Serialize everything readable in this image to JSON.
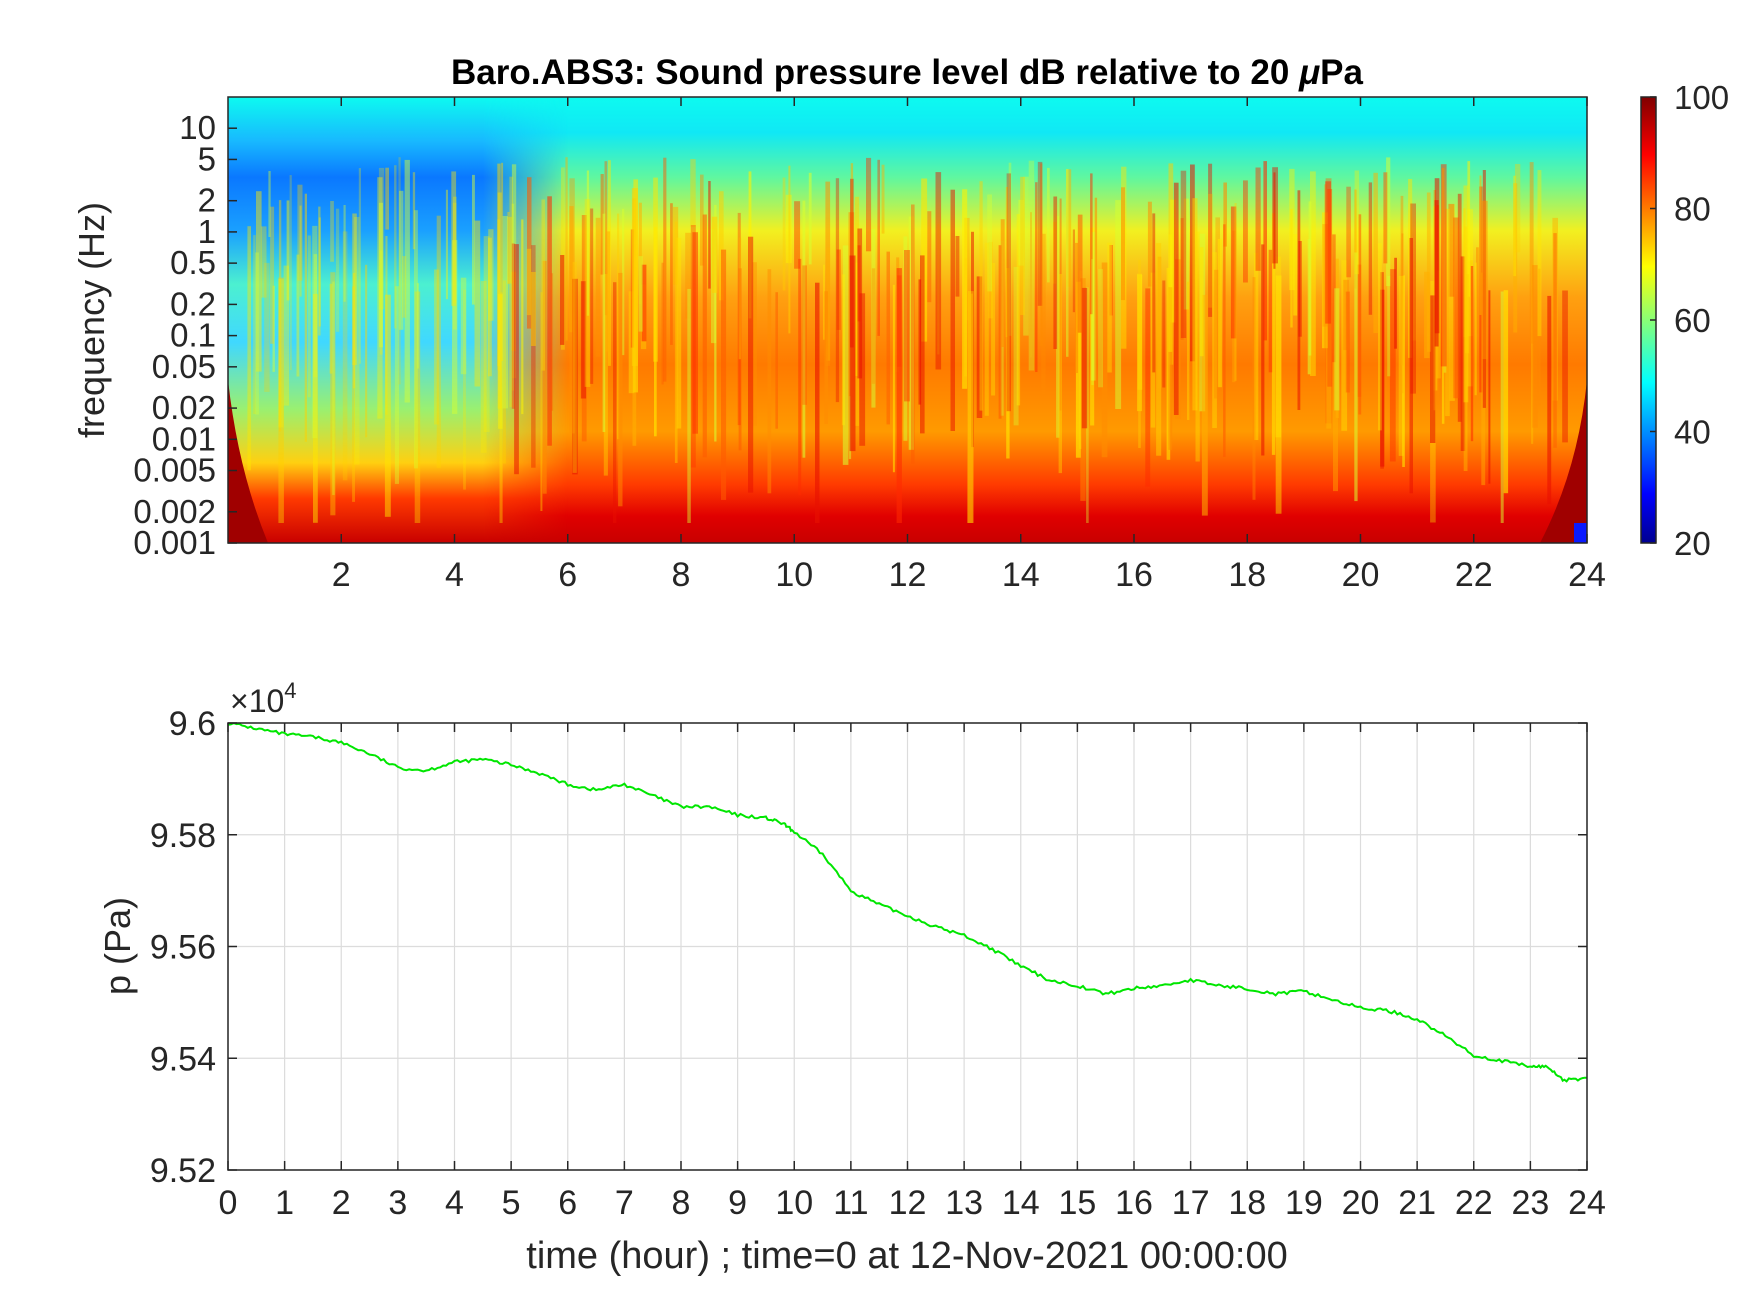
{
  "chart_data": [
    {
      "type": "heatmap",
      "title_prefix": "Baro.ABS3: Sound pressure level dB relative to 20 ",
      "title_mu": "μ",
      "title_suffix": "Pa",
      "ylabel": "frequency (Hz)",
      "xlim": [
        0,
        24
      ],
      "x_ticks": [
        "2",
        "4",
        "6",
        "8",
        "10",
        "12",
        "14",
        "16",
        "18",
        "20",
        "22",
        "24"
      ],
      "y_ticks": [
        "10",
        "5",
        "2",
        "1",
        "0.5",
        "0.2",
        "0.1",
        "0.05",
        "0.02",
        "0.01",
        "0.005",
        "0.002",
        "0.001"
      ],
      "y_scale": "log",
      "ylim_hz": [
        0.001,
        20
      ],
      "colormap": "jet",
      "colorbar": {
        "range": [
          20,
          100
        ],
        "ticks": [
          "100",
          "80",
          "60",
          "40",
          "20"
        ]
      },
      "features": {
        "low_frequency_band_db": 90,
        "mid_band_db_daytime": 80,
        "mid_band_db_night_0_to_5h": 55,
        "high_frequency_db": 50,
        "quiet_band_0_to_5h_hz": [
          0.5,
          5
        ],
        "quiet_band_db": 35
      }
    },
    {
      "type": "line",
      "exponent_label_base": "×10",
      "exponent_label_power": "4",
      "ylabel": "p (Pa)",
      "xlabel": "time (hour) ; time=0 at 12-Nov-2021 00:00:00",
      "xlim": [
        0,
        24
      ],
      "ylim": [
        9.52,
        9.6
      ],
      "x_ticks": [
        "0",
        "1",
        "2",
        "3",
        "4",
        "5",
        "6",
        "7",
        "8",
        "9",
        "10",
        "11",
        "12",
        "13",
        "14",
        "15",
        "16",
        "17",
        "18",
        "19",
        "20",
        "21",
        "22",
        "23",
        "24"
      ],
      "y_ticks": [
        "9.6",
        "9.58",
        "9.56",
        "9.54",
        "9.52"
      ],
      "grid": true,
      "series": [
        {
          "color": "#00e600",
          "x": [
            0,
            0.5,
            1,
            1.5,
            2,
            2.5,
            3,
            3.5,
            4,
            4.5,
            5,
            5.5,
            6,
            6.5,
            7,
            7.5,
            8,
            8.5,
            9,
            9.5,
            9.8,
            10,
            10.5,
            11,
            11.5,
            12,
            12.5,
            13,
            13.5,
            14,
            14.5,
            15,
            15.5,
            16,
            16.5,
            17,
            17.5,
            18,
            18.5,
            19,
            19.5,
            20,
            20.5,
            21,
            21.5,
            22,
            22.5,
            23,
            23.3,
            23.6,
            24
          ],
          "y": [
            9.6,
            9.599,
            9.598,
            9.5975,
            9.5965,
            9.5945,
            9.592,
            9.5915,
            9.593,
            9.5935,
            9.5925,
            9.591,
            9.589,
            9.588,
            9.589,
            9.587,
            9.585,
            9.585,
            9.5835,
            9.583,
            9.582,
            9.5805,
            9.5765,
            9.57,
            9.5675,
            9.5655,
            9.5635,
            9.562,
            9.5595,
            9.5565,
            9.554,
            9.553,
            9.5515,
            9.5525,
            9.553,
            9.554,
            9.553,
            9.5525,
            9.5515,
            9.552,
            9.5505,
            9.549,
            9.5485,
            9.547,
            9.544,
            9.5405,
            9.5395,
            9.5385,
            9.5385,
            9.536,
            9.5365
          ]
        }
      ]
    }
  ]
}
